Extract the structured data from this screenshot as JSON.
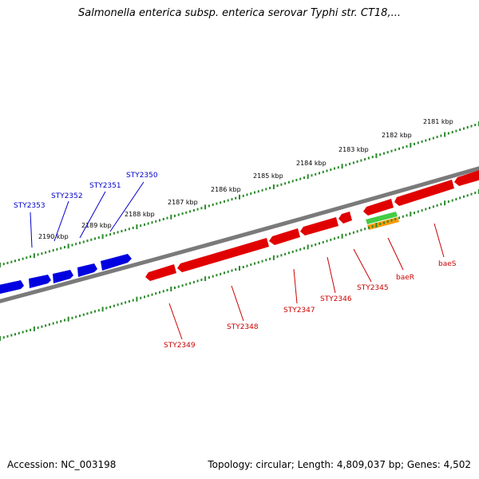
{
  "title": "Salmonella enterica subsp. enterica serovar Typhi str. CT18,...",
  "footer": {
    "accession": "Accession: NC_003198",
    "summary": "Topology: circular; Length: 4,809,037 bp; Genes: 4,502"
  },
  "colors": {
    "backbone": "#7a7a7a",
    "forward_gene": "#0000e0",
    "reverse_gene": "#e00000",
    "tick": "#2a8a2a",
    "baeR_band_top": "#44cc44",
    "baeR_band_bottom": "#ff9900"
  },
  "scale_labels": [
    "2181 kbp",
    "2182 kbp",
    "2183 kbp",
    "2184 kbp",
    "2185 kbp",
    "2186 kbp",
    "2187 kbp",
    "2188 kbp",
    "2189 kbp",
    "2190 kbp"
  ],
  "forward_genes": [
    "STY2350",
    "STY2351",
    "STY2352",
    "STY2353"
  ],
  "reverse_genes": [
    "baeS",
    "baeR",
    "STY2345",
    "STY2346",
    "STY2347",
    "STY2348",
    "STY2349"
  ]
}
